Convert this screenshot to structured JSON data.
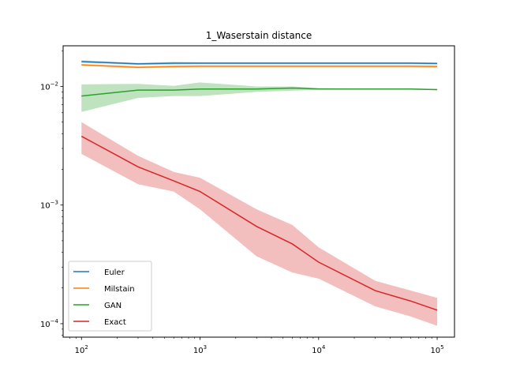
{
  "chart_data": {
    "type": "line",
    "title": "1_Waserstain distance",
    "xlabel": "",
    "ylabel": "",
    "xscale": "log",
    "yscale": "log",
    "xlim": [
      70,
      140000
    ],
    "ylim": [
      7.7e-05,
      0.022
    ],
    "x": [
      100,
      300,
      600,
      1000,
      3000,
      6000,
      10000,
      30000,
      60000,
      100000
    ],
    "x_ticks": [
      {
        "value": 100,
        "base": "10",
        "exp": "2"
      },
      {
        "value": 1000,
        "base": "10",
        "exp": "3"
      },
      {
        "value": 10000,
        "base": "10",
        "exp": "4"
      },
      {
        "value": 100000,
        "base": "10",
        "exp": "5"
      }
    ],
    "y_ticks": [
      {
        "value": 0.0001,
        "base": "10",
        "exp": "−4"
      },
      {
        "value": 0.001,
        "base": "10",
        "exp": "−3"
      },
      {
        "value": 0.01,
        "base": "10",
        "exp": "−2"
      }
    ],
    "legend_position": "lower-left",
    "series": [
      {
        "name": "Euler",
        "color": "#1f77b4",
        "values": [
          0.0162,
          0.0155,
          0.0157,
          0.0157,
          0.0157,
          0.0157,
          0.0157,
          0.0157,
          0.0157,
          0.0156
        ],
        "band_lower": [
          0.0158,
          0.0152,
          0.0153,
          0.0154,
          0.0154,
          0.0154,
          0.0154,
          0.0154,
          0.0154,
          0.0153
        ],
        "band_upper": [
          0.0166,
          0.0158,
          0.0161,
          0.016,
          0.016,
          0.016,
          0.016,
          0.016,
          0.016,
          0.0159
        ]
      },
      {
        "name": "Milstain",
        "color": "#ff7f0e",
        "values": [
          0.0152,
          0.0145,
          0.0147,
          0.0148,
          0.0148,
          0.0148,
          0.0148,
          0.0148,
          0.0148,
          0.0147
        ],
        "band_lower": [
          0.0149,
          0.0142,
          0.0144,
          0.0145,
          0.0145,
          0.0145,
          0.0145,
          0.0145,
          0.0145,
          0.0144
        ],
        "band_upper": [
          0.0155,
          0.0148,
          0.015,
          0.0151,
          0.0151,
          0.0151,
          0.0151,
          0.0151,
          0.0151,
          0.015
        ]
      },
      {
        "name": "GAN",
        "color": "#2ca02c",
        "values": [
          0.0083,
          0.0093,
          0.0093,
          0.0095,
          0.0095,
          0.0097,
          0.0095,
          0.0095,
          0.0095,
          0.0094
        ],
        "band_lower": [
          0.0061,
          0.008,
          0.0083,
          0.0083,
          0.009,
          0.0092,
          0.0094,
          0.0094,
          0.0094,
          0.0093
        ],
        "band_upper": [
          0.0104,
          0.0105,
          0.0101,
          0.0108,
          0.01,
          0.01,
          0.0097,
          0.0096,
          0.0096,
          0.0095
        ]
      },
      {
        "name": "Exact",
        "color": "#d62728",
        "values": [
          0.0038,
          0.0021,
          0.0016,
          0.0013,
          0.00066,
          0.00047,
          0.00033,
          0.00019,
          0.000155,
          0.00013
        ],
        "band_lower": [
          0.0027,
          0.0015,
          0.0013,
          0.00092,
          0.00037,
          0.00027,
          0.00024,
          0.00014,
          0.000115,
          9.6e-05
        ],
        "band_upper": [
          0.005,
          0.0026,
          0.0019,
          0.0017,
          0.00092,
          0.00068,
          0.00044,
          0.00023,
          0.00019,
          0.000165
        ]
      }
    ]
  }
}
